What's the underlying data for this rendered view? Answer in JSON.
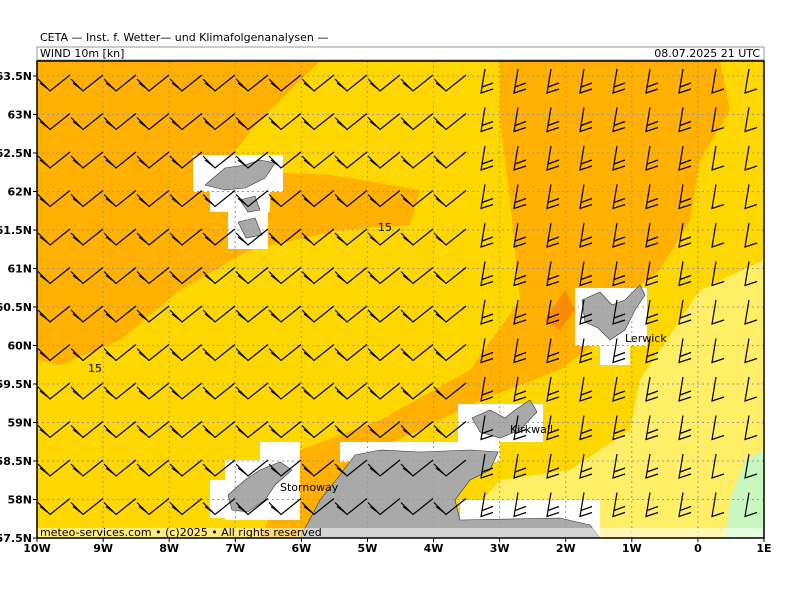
{
  "header": {
    "title": "CETA — Inst. f. Wetter— und Klimafolgenanalysen —",
    "product": "WIND 10m [kn]",
    "valid_time": "08.07.2025 21 UTC"
  },
  "axes": {
    "lat_labels": [
      "63.5N",
      "63N",
      "62.5N",
      "62N",
      "61.5N",
      "61N",
      "60.5N",
      "60N",
      "59.5N",
      "59N",
      "58.5N",
      "58N",
      "57.5N"
    ],
    "lon_labels": [
      "10W",
      "9W",
      "8W",
      "7W",
      "6W",
      "5W",
      "4W",
      "3W",
      "2W",
      "1W",
      "0",
      "1E"
    ]
  },
  "map": {
    "contour_labels": [
      "15",
      "15"
    ]
  },
  "places": [
    "Lerwick",
    "Kirkwall",
    "Stornoway"
  ],
  "footer": "meteo-services.com • (c)2025 • All rights reserved"
}
